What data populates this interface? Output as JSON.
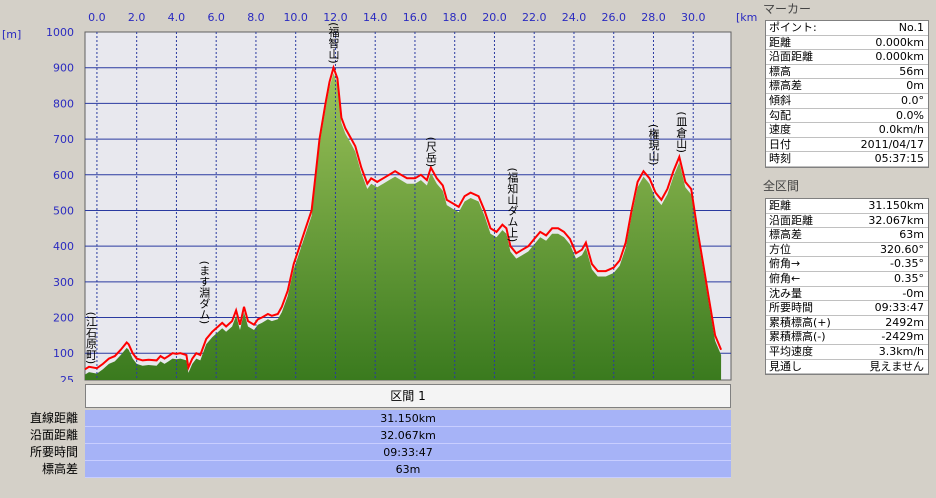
{
  "chart_data": {
    "type": "area",
    "x_unit": "[km]",
    "y_unit": "[m]",
    "xlim": [
      -0.6,
      31.9
    ],
    "ylim": [
      25,
      1000
    ],
    "x_ticks": [
      "0.0",
      "2.0",
      "4.0",
      "6.0",
      "8.0",
      "10.0",
      "12.0",
      "14.0",
      "16.0",
      "18.0",
      "20.0",
      "22.0",
      "24.0",
      "26.0",
      "28.0",
      "30.0"
    ],
    "y_ticks": [
      "1000",
      "900",
      "800",
      "700",
      "600",
      "500",
      "400",
      "300",
      "200",
      "100",
      "25"
    ],
    "annotations": [
      {
        "text": "(江石原町)",
        "x": -0.3,
        "y": 58
      },
      {
        "text": "(ます淵ダム)",
        "x": 5.4,
        "y": 170
      },
      {
        "text": "(福智山)",
        "x": 11.9,
        "y": 900
      },
      {
        "text": "(尺岳)",
        "x": 16.8,
        "y": 610
      },
      {
        "text": "(福知山ダム上)",
        "x": 20.9,
        "y": 400
      },
      {
        "text": "(権現山)",
        "x": 28.0,
        "y": 615
      },
      {
        "text": "(皿倉山)",
        "x": 29.4,
        "y": 650
      }
    ],
    "series": [
      {
        "color": "#ff0000",
        "values": [
          [
            -0.6,
            55
          ],
          [
            -0.4,
            62
          ],
          [
            0.0,
            58
          ],
          [
            0.3,
            70
          ],
          [
            0.6,
            85
          ],
          [
            0.9,
            92
          ],
          [
            1.2,
            110
          ],
          [
            1.5,
            130
          ],
          [
            1.6,
            125
          ],
          [
            1.8,
            100
          ],
          [
            2.0,
            85
          ],
          [
            2.3,
            80
          ],
          [
            2.6,
            82
          ],
          [
            3.0,
            80
          ],
          [
            3.2,
            92
          ],
          [
            3.4,
            85
          ],
          [
            3.6,
            92
          ],
          [
            3.8,
            100
          ],
          [
            4.0,
            98
          ],
          [
            4.2,
            100
          ],
          [
            4.5,
            95
          ],
          [
            4.6,
            60
          ],
          [
            4.8,
            85
          ],
          [
            5.0,
            100
          ],
          [
            5.2,
            95
          ],
          [
            5.5,
            140
          ],
          [
            5.8,
            160
          ],
          [
            6.0,
            170
          ],
          [
            6.3,
            185
          ],
          [
            6.5,
            175
          ],
          [
            6.8,
            190
          ],
          [
            7.0,
            220
          ],
          [
            7.2,
            180
          ],
          [
            7.4,
            230
          ],
          [
            7.6,
            190
          ],
          [
            7.9,
            180
          ],
          [
            8.1,
            195
          ],
          [
            8.3,
            200
          ],
          [
            8.6,
            210
          ],
          [
            8.8,
            205
          ],
          [
            9.1,
            210
          ],
          [
            9.3,
            230
          ],
          [
            9.6,
            275
          ],
          [
            9.9,
            350
          ],
          [
            10.2,
            400
          ],
          [
            10.5,
            450
          ],
          [
            10.8,
            500
          ],
          [
            11.0,
            600
          ],
          [
            11.2,
            700
          ],
          [
            11.5,
            800
          ],
          [
            11.7,
            860
          ],
          [
            11.9,
            900
          ],
          [
            12.1,
            870
          ],
          [
            12.3,
            760
          ],
          [
            12.5,
            730
          ],
          [
            12.8,
            700
          ],
          [
            13.0,
            680
          ],
          [
            13.3,
            620
          ],
          [
            13.6,
            575
          ],
          [
            13.8,
            590
          ],
          [
            14.1,
            580
          ],
          [
            14.4,
            590
          ],
          [
            14.7,
            600
          ],
          [
            15.0,
            610
          ],
          [
            15.3,
            600
          ],
          [
            15.6,
            590
          ],
          [
            16.0,
            590
          ],
          [
            16.3,
            600
          ],
          [
            16.6,
            585
          ],
          [
            16.8,
            620
          ],
          [
            17.1,
            590
          ],
          [
            17.4,
            570
          ],
          [
            17.6,
            530
          ],
          [
            17.9,
            520
          ],
          [
            18.2,
            510
          ],
          [
            18.5,
            540
          ],
          [
            18.8,
            550
          ],
          [
            19.2,
            540
          ],
          [
            19.5,
            500
          ],
          [
            19.8,
            450
          ],
          [
            20.1,
            440
          ],
          [
            20.4,
            460
          ],
          [
            20.6,
            450
          ],
          [
            20.8,
            400
          ],
          [
            21.1,
            380
          ],
          [
            21.4,
            390
          ],
          [
            21.7,
            400
          ],
          [
            22.0,
            420
          ],
          [
            22.3,
            440
          ],
          [
            22.6,
            430
          ],
          [
            22.9,
            450
          ],
          [
            23.2,
            450
          ],
          [
            23.5,
            440
          ],
          [
            23.8,
            420
          ],
          [
            24.1,
            380
          ],
          [
            24.4,
            390
          ],
          [
            24.6,
            410
          ],
          [
            24.9,
            350
          ],
          [
            25.2,
            330
          ],
          [
            25.6,
            330
          ],
          [
            26.0,
            340
          ],
          [
            26.3,
            360
          ],
          [
            26.6,
            410
          ],
          [
            26.9,
            500
          ],
          [
            27.2,
            580
          ],
          [
            27.5,
            610
          ],
          [
            27.8,
            590
          ],
          [
            28.1,
            550
          ],
          [
            28.4,
            530
          ],
          [
            28.7,
            560
          ],
          [
            29.0,
            610
          ],
          [
            29.3,
            650
          ],
          [
            29.6,
            580
          ],
          [
            29.9,
            560
          ],
          [
            30.2,
            450
          ],
          [
            30.5,
            350
          ],
          [
            30.8,
            250
          ],
          [
            31.1,
            150
          ],
          [
            31.4,
            110
          ]
        ]
      }
    ]
  },
  "summary": {
    "header": "区間 1",
    "rows": [
      {
        "label": "直線距離",
        "value": "31.150km"
      },
      {
        "label": "沿面距離",
        "value": "32.067km"
      },
      {
        "label": "所要時間",
        "value": "09:33:47"
      },
      {
        "label": "標高差",
        "value": "63m"
      }
    ]
  },
  "marker_panel": {
    "title": "マーカー",
    "rows": [
      {
        "label": "ポイント:",
        "value": "No.1"
      },
      {
        "label": "距離",
        "value": "0.000km"
      },
      {
        "label": "沿面距離",
        "value": "0.000km"
      },
      {
        "label": "標高",
        "value": "56m"
      },
      {
        "label": "標高差",
        "value": "0m"
      },
      {
        "label": "傾斜",
        "value": "0.0°"
      },
      {
        "label": "勾配",
        "value": "0.0%"
      },
      {
        "label": "速度",
        "value": "0.0km/h"
      },
      {
        "label": "日付",
        "value": "2011/04/17"
      },
      {
        "label": "時刻",
        "value": "05:37:15"
      }
    ]
  },
  "section_panel": {
    "title": "全区間",
    "rows": [
      {
        "label": "距離",
        "value": "31.150km"
      },
      {
        "label": "沿面距離",
        "value": "32.067km"
      },
      {
        "label": "標高差",
        "value": "63m"
      },
      {
        "label": "方位",
        "value": "320.60°"
      },
      {
        "label": "俯角→",
        "value": "-0.35°"
      },
      {
        "label": "俯角←",
        "value": "0.35°"
      },
      {
        "label": "沈み量",
        "value": "-0m"
      },
      {
        "label": "所要時間",
        "value": "09:33:47"
      },
      {
        "label": "累積標高(+)",
        "value": "2492m"
      },
      {
        "label": "累積標高(-)",
        "value": "-2429m"
      },
      {
        "label": "平均速度",
        "value": "3.3km/h"
      },
      {
        "label": "見通し",
        "value": "見えません"
      }
    ]
  }
}
